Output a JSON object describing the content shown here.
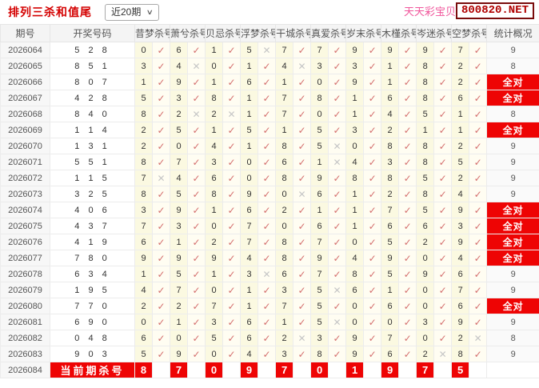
{
  "page": {
    "title": "排列三杀和值尾",
    "range_select": {
      "value": "近20期"
    },
    "brand": {
      "name": "天天彩宝贝",
      "site": "800820.NET"
    }
  },
  "icons": {
    "hit_mark": "✓",
    "miss_mark": "✕",
    "dropdown_arrow": "∨"
  },
  "colors": {
    "accent_red": "#ee0404",
    "title_red": "#d40000",
    "brand_pink": "#f0559b",
    "hit_pink": "#d46f6e",
    "miss_gray": "#c6c6c6",
    "cell_yellow": "#fbf9e1"
  },
  "table": {
    "columns": [
      "期号",
      "开奖号码",
      "昔梦杀号",
      "萧兮杀号",
      "贝忌杀号",
      "浮梦杀号",
      "干城杀号",
      "真爱杀号",
      "岁末杀号",
      "木槿杀号",
      "岑迷杀号",
      "空梦杀号",
      "统计概况"
    ],
    "full_hit_label": "全对",
    "current_row_label": "当前期杀号",
    "rows": [
      {
        "period": "2026064",
        "draw": "5 2 8",
        "nums": [
          0,
          6,
          1,
          5,
          7,
          7,
          9,
          9,
          9,
          7
        ],
        "hits": [
          1,
          1,
          1,
          0,
          1,
          1,
          1,
          1,
          1,
          1
        ],
        "stat": "9"
      },
      {
        "period": "2026065",
        "draw": "8 5 1",
        "nums": [
          3,
          4,
          0,
          1,
          4,
          3,
          3,
          1,
          8,
          2
        ],
        "hits": [
          1,
          0,
          1,
          1,
          0,
          1,
          1,
          1,
          1,
          1
        ],
        "stat": "8"
      },
      {
        "period": "2026066",
        "draw": "8 0 7",
        "nums": [
          1,
          9,
          1,
          6,
          1,
          0,
          9,
          1,
          8,
          2
        ],
        "hits": [
          1,
          1,
          1,
          1,
          1,
          1,
          1,
          1,
          1,
          1
        ],
        "stat": "全对"
      },
      {
        "period": "2026067",
        "draw": "4 2 8",
        "nums": [
          5,
          3,
          8,
          1,
          7,
          8,
          1,
          6,
          8,
          6
        ],
        "hits": [
          1,
          1,
          1,
          1,
          1,
          1,
          1,
          1,
          1,
          1
        ],
        "stat": "全对"
      },
      {
        "period": "2026068",
        "draw": "8 4 0",
        "nums": [
          8,
          2,
          2,
          1,
          7,
          0,
          1,
          4,
          5,
          1
        ],
        "hits": [
          1,
          0,
          0,
          1,
          1,
          1,
          1,
          1,
          1,
          1
        ],
        "stat": "8"
      },
      {
        "period": "2026069",
        "draw": "1 1 4",
        "nums": [
          2,
          5,
          1,
          5,
          1,
          5,
          3,
          2,
          1,
          1
        ],
        "hits": [
          1,
          1,
          1,
          1,
          1,
          1,
          1,
          1,
          1,
          1
        ],
        "stat": "全对"
      },
      {
        "period": "2026070",
        "draw": "1 3 1",
        "nums": [
          2,
          0,
          4,
          1,
          8,
          5,
          0,
          8,
          8,
          2
        ],
        "hits": [
          1,
          1,
          1,
          1,
          1,
          0,
          1,
          1,
          1,
          1
        ],
        "stat": "9"
      },
      {
        "period": "2026071",
        "draw": "5 5 1",
        "nums": [
          8,
          7,
          3,
          0,
          6,
          1,
          4,
          3,
          8,
          5
        ],
        "hits": [
          1,
          1,
          1,
          1,
          1,
          0,
          1,
          1,
          1,
          1
        ],
        "stat": "9"
      },
      {
        "period": "2026072",
        "draw": "1 1 5",
        "nums": [
          7,
          4,
          6,
          0,
          8,
          9,
          8,
          8,
          5,
          2
        ],
        "hits": [
          0,
          1,
          1,
          1,
          1,
          1,
          1,
          1,
          1,
          1
        ],
        "stat": "9"
      },
      {
        "period": "2026073",
        "draw": "3 2 5",
        "nums": [
          8,
          5,
          8,
          9,
          0,
          6,
          1,
          2,
          8,
          4
        ],
        "hits": [
          1,
          1,
          1,
          1,
          0,
          1,
          1,
          1,
          1,
          1
        ],
        "stat": "9"
      },
      {
        "period": "2026074",
        "draw": "4 0 6",
        "nums": [
          3,
          9,
          1,
          6,
          2,
          1,
          1,
          7,
          5,
          9
        ],
        "hits": [
          1,
          1,
          1,
          1,
          1,
          1,
          1,
          1,
          1,
          1
        ],
        "stat": "全对"
      },
      {
        "period": "2026075",
        "draw": "4 3 7",
        "nums": [
          7,
          3,
          0,
          7,
          0,
          6,
          1,
          6,
          6,
          3
        ],
        "hits": [
          1,
          1,
          1,
          1,
          1,
          1,
          1,
          1,
          1,
          1
        ],
        "stat": "全对"
      },
      {
        "period": "2026076",
        "draw": "4 1 9",
        "nums": [
          6,
          1,
          2,
          7,
          8,
          7,
          0,
          5,
          2,
          9
        ],
        "hits": [
          1,
          1,
          1,
          1,
          1,
          1,
          1,
          1,
          1,
          1
        ],
        "stat": "全对"
      },
      {
        "period": "2026077",
        "draw": "7 8 0",
        "nums": [
          9,
          9,
          9,
          4,
          8,
          9,
          4,
          9,
          0,
          4
        ],
        "hits": [
          1,
          1,
          1,
          1,
          1,
          1,
          1,
          1,
          1,
          1
        ],
        "stat": "全对"
      },
      {
        "period": "2026078",
        "draw": "6 3 4",
        "nums": [
          1,
          5,
          1,
          3,
          6,
          7,
          8,
          5,
          9,
          6
        ],
        "hits": [
          1,
          1,
          1,
          0,
          1,
          1,
          1,
          1,
          1,
          1
        ],
        "stat": "9"
      },
      {
        "period": "2026079",
        "draw": "1 9 5",
        "nums": [
          4,
          7,
          0,
          1,
          3,
          5,
          6,
          1,
          0,
          7
        ],
        "hits": [
          1,
          1,
          1,
          1,
          1,
          0,
          1,
          1,
          1,
          1
        ],
        "stat": "9"
      },
      {
        "period": "2026080",
        "draw": "7 7 0",
        "nums": [
          2,
          2,
          7,
          1,
          7,
          5,
          0,
          6,
          0,
          6
        ],
        "hits": [
          1,
          1,
          1,
          1,
          1,
          1,
          1,
          1,
          1,
          1
        ],
        "stat": "全对"
      },
      {
        "period": "2026081",
        "draw": "6 9 0",
        "nums": [
          0,
          1,
          3,
          6,
          1,
          5,
          0,
          0,
          3,
          9
        ],
        "hits": [
          1,
          1,
          1,
          1,
          1,
          0,
          1,
          1,
          1,
          1
        ],
        "stat": "9"
      },
      {
        "period": "2026082",
        "draw": "0 4 8",
        "nums": [
          6,
          0,
          5,
          6,
          2,
          3,
          9,
          7,
          0,
          2
        ],
        "hits": [
          1,
          1,
          1,
          1,
          0,
          1,
          1,
          1,
          1,
          0
        ],
        "stat": "8"
      },
      {
        "period": "2026083",
        "draw": "9 0 3",
        "nums": [
          5,
          9,
          0,
          4,
          3,
          8,
          9,
          6,
          2,
          8
        ],
        "hits": [
          1,
          1,
          1,
          1,
          1,
          1,
          1,
          1,
          0,
          1
        ],
        "stat": "9"
      }
    ],
    "current": {
      "period": "2026084",
      "kills": [
        8,
        7,
        0,
        9,
        7,
        0,
        1,
        9,
        7,
        5
      ]
    }
  }
}
